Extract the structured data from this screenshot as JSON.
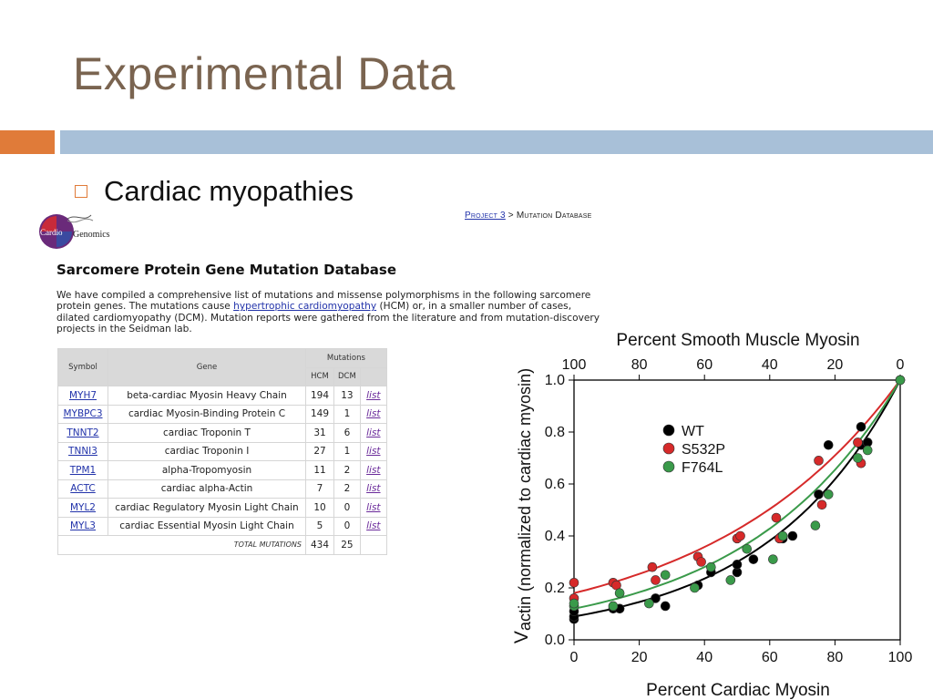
{
  "slide": {
    "title": "Experimental Data",
    "bullet": "Cardiac myopathies"
  },
  "colors": {
    "title": "#7a6450",
    "accent_orange": "#e07b39",
    "accent_blue": "#a8c0d8"
  },
  "logo": {
    "line1": "Cardio",
    "line2": "Genomics"
  },
  "breadcrumb": {
    "project": "Project 3",
    "separator": ">",
    "page": "Mutation Database"
  },
  "database": {
    "title": "Sarcomere Protein Gene Mutation Database",
    "para_before": "We have compiled a comprehensive list of mutations and missense polymorphisms in the following sarcomere protein genes. The mutations cause ",
    "para_link": "hypertrophic cardiomyopathy",
    "para_after": " (HCM) or, in a smaller number of cases, dilated cardiomyopathy (DCM). Mutation reports were gathered from the literature and from mutation-discovery projects in the Seidman lab.",
    "headers": {
      "symbol": "Symbol",
      "gene": "Gene",
      "mutations": "Mutations",
      "hcm": "HCM",
      "dcm": "DCM"
    },
    "rows": [
      {
        "symbol": "MYH7",
        "gene": "beta-cardiac Myosin Heavy Chain",
        "hcm": "194",
        "dcm": "13",
        "link": "list"
      },
      {
        "symbol": "MYBPC3",
        "gene": "cardiac Myosin-Binding Protein C",
        "hcm": "149",
        "dcm": "1",
        "link": "list"
      },
      {
        "symbol": "TNNT2",
        "gene": "cardiac Troponin T",
        "hcm": "31",
        "dcm": "6",
        "link": "list"
      },
      {
        "symbol": "TNNI3",
        "gene": "cardiac Troponin I",
        "hcm": "27",
        "dcm": "1",
        "link": "list"
      },
      {
        "symbol": "TPM1",
        "gene": "alpha-Tropomyosin",
        "hcm": "11",
        "dcm": "2",
        "link": "list"
      },
      {
        "symbol": "ACTC",
        "gene": "cardiac alpha-Actin",
        "hcm": "7",
        "dcm": "2",
        "link": "list"
      },
      {
        "symbol": "MYL2",
        "gene": "cardiac Regulatory Myosin Light Chain",
        "hcm": "10",
        "dcm": "0",
        "link": "list"
      },
      {
        "symbol": "MYL3",
        "gene": "cardiac Essential Myosin Light Chain",
        "hcm": "5",
        "dcm": "0",
        "link": "list"
      }
    ],
    "total": {
      "label": "TOTAL MUTATIONS",
      "hcm": "434",
      "dcm": "25"
    }
  },
  "chart_data": {
    "type": "scatter",
    "title": "",
    "top_axis_label": "Percent Smooth Muscle Myosin",
    "top_ticks": [
      "100",
      "80",
      "60",
      "40",
      "20",
      "0"
    ],
    "xlabel": "Percent Cardiac Myosin",
    "ylabel_lead": "V",
    "ylabel": "actin (normalized to cardiac myosin)",
    "x_ticks": [
      "0",
      "20",
      "40",
      "60",
      "80",
      "100"
    ],
    "y_ticks": [
      "0.0",
      "0.2",
      "0.4",
      "0.6",
      "0.8",
      "1.0"
    ],
    "xlim": [
      0,
      100
    ],
    "ylim": [
      0,
      1.0
    ],
    "grid": false,
    "legend_position": "upper-left inside",
    "series": [
      {
        "name": "WT",
        "color": "#000000",
        "x": [
          0,
          0,
          0,
          12,
          14,
          25,
          28,
          38,
          42,
          50,
          50,
          55,
          64,
          67,
          75,
          78,
          88,
          88,
          90,
          100
        ],
        "y": [
          0.08,
          0.09,
          0.11,
          0.12,
          0.12,
          0.16,
          0.13,
          0.21,
          0.26,
          0.26,
          0.29,
          0.31,
          0.39,
          0.4,
          0.56,
          0.75,
          0.82,
          0.75,
          0.76,
          1.0
        ]
      },
      {
        "name": "S532P",
        "color": "#d62a2a",
        "x": [
          0,
          0,
          12,
          13,
          24,
          25,
          38,
          39,
          50,
          51,
          62,
          63,
          75,
          76,
          87,
          88,
          100
        ],
        "y": [
          0.16,
          0.22,
          0.22,
          0.21,
          0.28,
          0.23,
          0.32,
          0.3,
          0.39,
          0.4,
          0.47,
          0.39,
          0.69,
          0.52,
          0.76,
          0.68,
          1.0
        ]
      },
      {
        "name": "F764L",
        "color": "#3a9a4a",
        "x": [
          0,
          0,
          12,
          14,
          23,
          28,
          37,
          42,
          48,
          53,
          61,
          64,
          74,
          78,
          87,
          90,
          100
        ],
        "y": [
          0.13,
          0.14,
          0.13,
          0.18,
          0.14,
          0.25,
          0.2,
          0.28,
          0.23,
          0.35,
          0.31,
          0.4,
          0.44,
          0.56,
          0.7,
          0.73,
          1.0
        ]
      }
    ],
    "fit_curves": [
      {
        "name": "WT",
        "color": "#000000",
        "y0": 0.09
      },
      {
        "name": "S532P",
        "color": "#d62a2a",
        "y0": 0.18
      },
      {
        "name": "F764L",
        "color": "#3a9a4a",
        "y0": 0.12
      }
    ]
  }
}
